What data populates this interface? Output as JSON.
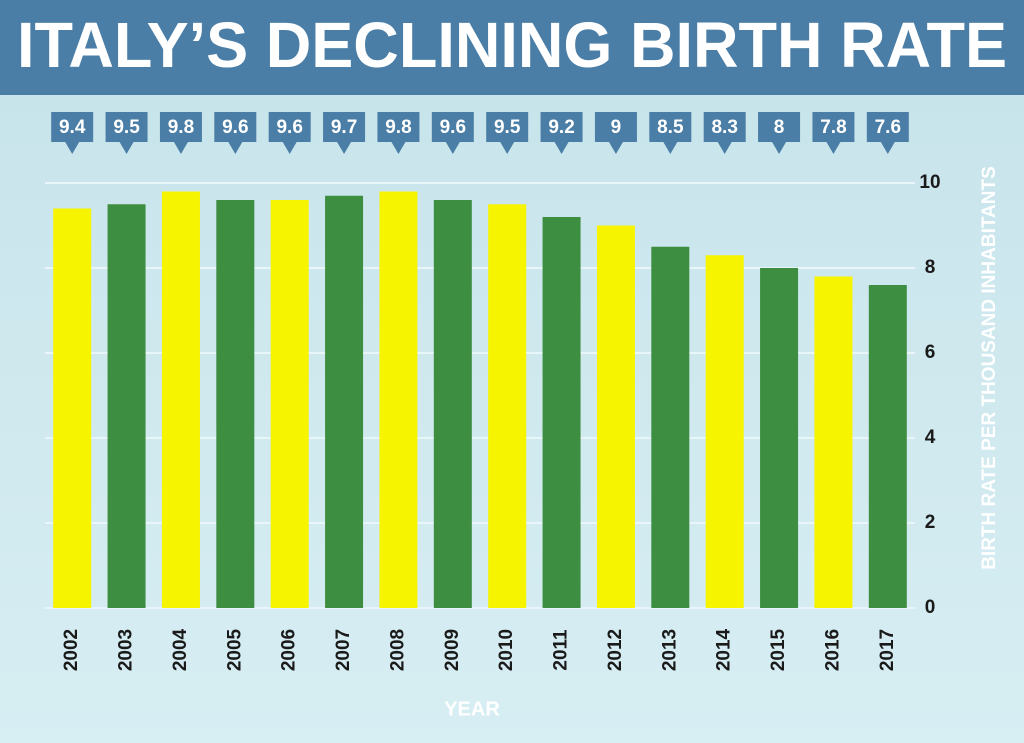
{
  "chart_data": {
    "type": "bar",
    "title": "ITALY’S DECLINING BIRTH RATE",
    "x_label": "YEAR",
    "y_label": "BIRTH RATE PER THOUSAND INHABITANTS",
    "categories": [
      "2002",
      "2003",
      "2004",
      "2005",
      "2006",
      "2007",
      "2008",
      "2009",
      "2010",
      "2011",
      "2012",
      "2013",
      "2014",
      "2015",
      "2016",
      "2017"
    ],
    "values": [
      9.4,
      9.5,
      9.8,
      9.6,
      9.6,
      9.7,
      9.8,
      9.6,
      9.5,
      9.2,
      9,
      8.5,
      8.3,
      8,
      7.8,
      7.6
    ],
    "colors": [
      "#f7f400",
      "#3e8e41",
      "#f7f400",
      "#3e8e41",
      "#f7f400",
      "#3e8e41",
      "#f7f400",
      "#3e8e41",
      "#f7f400",
      "#3e8e41",
      "#f7f400",
      "#3e8e41",
      "#f7f400",
      "#3e8e41",
      "#f7f400",
      "#3e8e41"
    ],
    "ylim": [
      0,
      10
    ],
    "yticks": [
      0,
      2,
      4,
      6,
      8,
      10
    ],
    "grid": true,
    "y_axis_side": "right"
  }
}
